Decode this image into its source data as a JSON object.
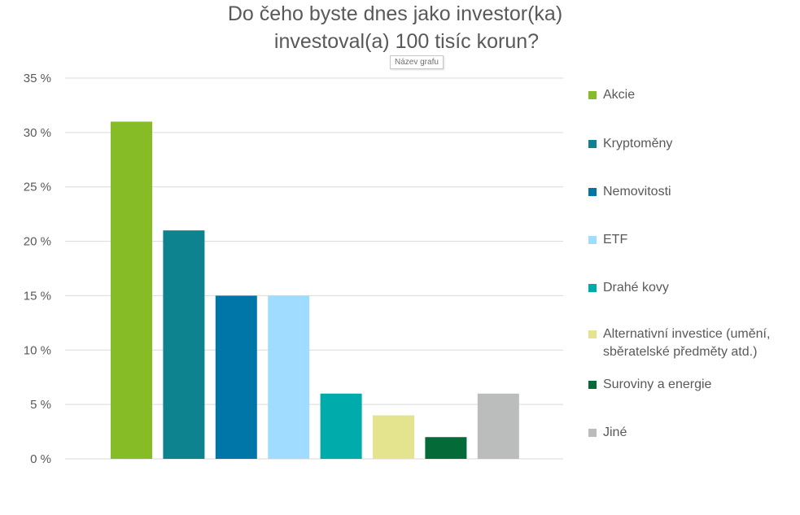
{
  "chart_data": {
    "type": "bar",
    "title_lines": [
      "Do čeho byste dnes jako investor(ka)",
      "investoval(a) 100 tisíc korun?"
    ],
    "tooltip": "Název grafu",
    "categories": [
      "Akcie",
      "Kryptoměny",
      "Nemovitosti",
      "ETF",
      "Drahé kovy",
      "Alternativní investice (umění,\nsběratelské předměty atd.)",
      "Suroviny a energie",
      "Jiné"
    ],
    "values": [
      31,
      21,
      15,
      15,
      6,
      4,
      2,
      6
    ],
    "colors": [
      "#86bc25",
      "#0d8390",
      "#0076a8",
      "#a0dcff",
      "#00abab",
      "#e3e48d",
      "#046a38",
      "#bbbcbc"
    ],
    "y_ticks": [
      "0 %",
      "5 %",
      "10 %",
      "15 %",
      "20 %",
      "25 %",
      "30 %",
      "35 %"
    ],
    "ylim": [
      0,
      35
    ],
    "y_unit": "%",
    "grid": true,
    "legend_position": "right"
  }
}
